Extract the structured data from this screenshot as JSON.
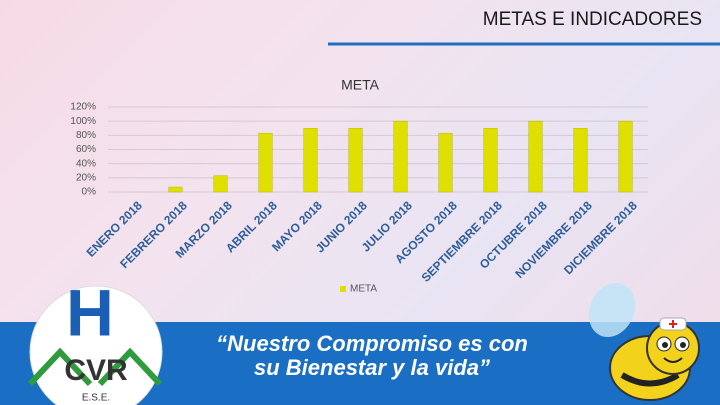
{
  "header": {
    "title": "METAS E INDICADORES"
  },
  "chart_data": {
    "type": "bar",
    "title": "META",
    "categories": [
      "ENERO 2018",
      "FEBRERO 2018",
      "MARZO 2018",
      "ABRIL 2018",
      "MAYO 2018",
      "JUNIO 2018",
      "JULIO 2018",
      "AGOSTO 2018",
      "SEPTIEMBRE 2018",
      "OCTUBRE 2018",
      "NOVIEMBRE 2018",
      "DICIEMBRE 2018"
    ],
    "series": [
      {
        "name": "META",
        "color": "#e0e000",
        "values": [
          0,
          7,
          23,
          83,
          90,
          90,
          100,
          83,
          90,
          100,
          90,
          100
        ]
      }
    ],
    "ylim": [
      0,
      120
    ],
    "yticks": [
      {
        "value": 0,
        "label": "0%"
      },
      {
        "value": 20,
        "label": "20%"
      },
      {
        "value": 40,
        "label": "40%"
      },
      {
        "value": 60,
        "label": "60%"
      },
      {
        "value": 80,
        "label": "80%"
      },
      {
        "value": 100,
        "label": "100%"
      },
      {
        "value": 120,
        "label": "120%"
      }
    ],
    "grid": true,
    "legend": "bottom"
  },
  "footer": {
    "slogan": [
      "“Nuestro Compromiso es con",
      "su Bienestar y la vida”"
    ],
    "logo_h": "H",
    "logo_letters": "CVR",
    "logo_subtitle": "E.S.E."
  }
}
